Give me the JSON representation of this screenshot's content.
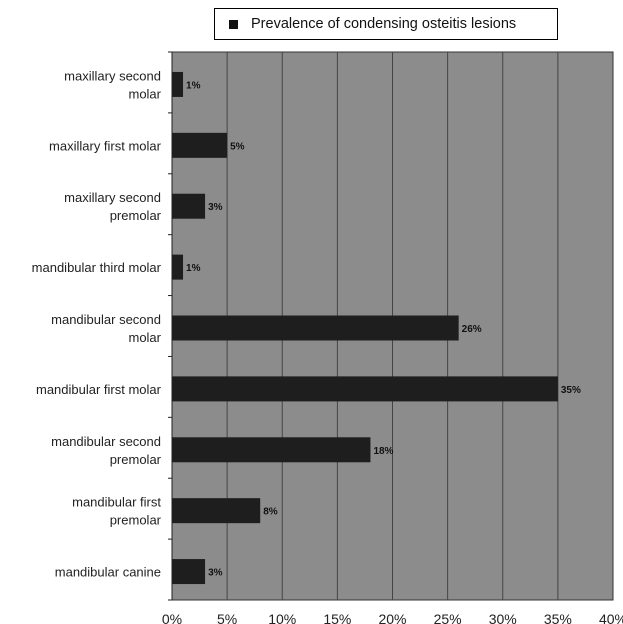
{
  "chart_data": {
    "type": "bar",
    "orientation": "horizontal",
    "legend": {
      "label": "Prevalence of condensing osteitis lesions",
      "position": "top"
    },
    "categories": [
      [
        "maxillary second",
        "molar"
      ],
      [
        "maxillary first molar"
      ],
      [
        "maxillary second",
        "premolar"
      ],
      [
        "mandibular third molar"
      ],
      [
        "mandibular second",
        "molar"
      ],
      [
        "mandibular first molar"
      ],
      [
        "mandibular second",
        "premolar"
      ],
      [
        "mandibular first",
        "premolar"
      ],
      [
        "mandibular canine"
      ]
    ],
    "series": [
      {
        "name": "Prevalence of condensing osteitis lesions",
        "values": [
          1,
          5,
          3,
          1,
          26,
          35,
          18,
          8,
          3
        ],
        "labels": [
          "1%",
          "5%",
          "3%",
          "1%",
          "26%",
          "35%",
          "18%",
          "8%",
          "3%"
        ]
      }
    ],
    "xlim": [
      0,
      40
    ],
    "xticks": [
      "0%",
      "5%",
      "10%",
      "15%",
      "20%",
      "25%",
      "30%",
      "35%",
      "40%"
    ],
    "grid": true,
    "colors": {
      "plot_bg": "#8c8c8c",
      "bar": "#1e1e1e",
      "grid": "#444444"
    }
  }
}
